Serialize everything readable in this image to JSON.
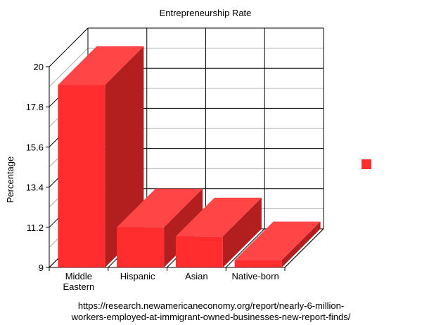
{
  "chart_data": {
    "type": "bar",
    "title": "Entrepreneurship Rate",
    "ylabel": "Percentage",
    "xlabel": "",
    "categories": [
      "Middle Eastern",
      "Hispanic",
      "Asian",
      "Native-born"
    ],
    "category_lines": [
      [
        "Middle",
        "Eastern"
      ],
      [
        "Hispanic"
      ],
      [
        "Asian"
      ],
      [
        "Native-born"
      ]
    ],
    "series": [
      {
        "values": [
          19.0,
          11.2,
          10.7,
          9.4
        ],
        "color": "#ff2d2d"
      }
    ],
    "ylim": [
      9,
      20
    ],
    "yticks": [
      "9",
      "11.2",
      "13.4",
      "15.6",
      "17.8",
      "20"
    ],
    "three_d": true,
    "grid": true,
    "legend": "right"
  },
  "source": {
    "line1": "https://research.newamericaneconomy.org/report/nearly-6-million-",
    "line2": "workers-employed-at-immigrant-owned-businesses-new-report-finds/"
  }
}
